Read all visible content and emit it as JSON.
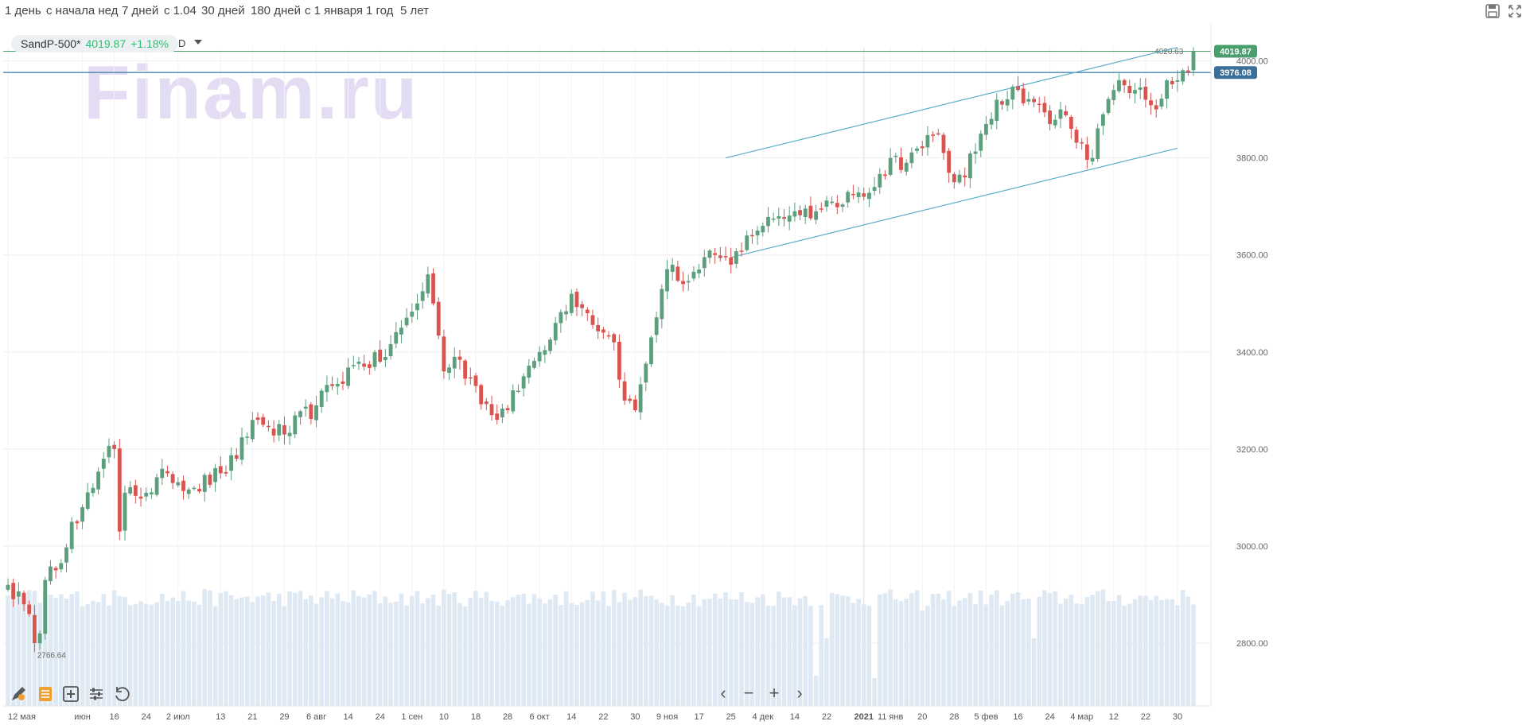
{
  "toolbar": {
    "periods": [
      {
        "label": "1 день"
      },
      {
        "label": "с начала нед"
      },
      {
        "label": "7 дней"
      },
      {
        "label": "с 1.04"
      },
      {
        "label": "30 дней"
      },
      {
        "label": "180 дней"
      },
      {
        "label": "с 1 января"
      },
      {
        "label": "1 год"
      },
      {
        "label": "5 лет"
      }
    ],
    "save_icon": "save-icon",
    "fullscreen_icon": "fullscreen-icon"
  },
  "ticker": {
    "name": "SandP-500*",
    "price": "4019.87",
    "change": "+1.18%",
    "interval": "D"
  },
  "watermark": "Finam.ru",
  "colors": {
    "up": "#5b9f7d",
    "down": "#d9534f",
    "volume": "#dfe9f3",
    "channel": "#5aaec8",
    "price_badge": "#4a9e6e",
    "level_badge": "#3c6e9a",
    "level_line": "#4a84b0"
  },
  "chart_data": {
    "type": "candlestick",
    "ylim": [
      2700,
      4060
    ],
    "yticks": [
      2800,
      3000,
      3200,
      3400,
      3600,
      3800,
      4000
    ],
    "ytick_labels": [
      "2800.00",
      "3000.00",
      "3200.00",
      "3400.00",
      "3600.00",
      "3800.00",
      "4000.00"
    ],
    "x_labels": [
      {
        "label": "12 мая",
        "i": 0
      },
      {
        "label": "июн",
        "i": 14
      },
      {
        "label": "16",
        "i": 20
      },
      {
        "label": "24",
        "i": 26
      },
      {
        "label": "2 июл",
        "i": 32
      },
      {
        "label": "13",
        "i": 40
      },
      {
        "label": "21",
        "i": 46
      },
      {
        "label": "29",
        "i": 52
      },
      {
        "label": "6 авг",
        "i": 58
      },
      {
        "label": "14",
        "i": 64
      },
      {
        "label": "24",
        "i": 70
      },
      {
        "label": "1 сен",
        "i": 76
      },
      {
        "label": "10",
        "i": 82
      },
      {
        "label": "18",
        "i": 88
      },
      {
        "label": "28",
        "i": 94
      },
      {
        "label": "6 окт",
        "i": 100
      },
      {
        "label": "14",
        "i": 106
      },
      {
        "label": "22",
        "i": 112
      },
      {
        "label": "30",
        "i": 118
      },
      {
        "label": "9 ноя",
        "i": 124
      },
      {
        "label": "17",
        "i": 130
      },
      {
        "label": "25",
        "i": 136
      },
      {
        "label": "4 дек",
        "i": 142
      },
      {
        "label": "14",
        "i": 148
      },
      {
        "label": "22",
        "i": 154
      },
      {
        "label": "2021",
        "i": 161,
        "bold": true
      },
      {
        "label": "11 янв",
        "i": 166
      },
      {
        "label": "20",
        "i": 172
      },
      {
        "label": "28",
        "i": 178
      },
      {
        "label": "5 фев",
        "i": 184
      },
      {
        "label": "16",
        "i": 190
      },
      {
        "label": "24",
        "i": 196
      },
      {
        "label": "4 мар",
        "i": 202
      },
      {
        "label": "12",
        "i": 208
      },
      {
        "label": "22",
        "i": 214
      },
      {
        "label": "30",
        "i": 220
      }
    ],
    "candle_count": 224,
    "anchors": [
      [
        0,
        2920
      ],
      [
        3,
        2880
      ],
      [
        4,
        2860
      ],
      [
        5,
        2800
      ],
      [
        6,
        2820
      ],
      [
        7,
        2930
      ],
      [
        9,
        2950
      ],
      [
        12,
        3050
      ],
      [
        14,
        3080
      ],
      [
        16,
        3120
      ],
      [
        18,
        3180
      ],
      [
        20,
        3200
      ],
      [
        21,
        3030
      ],
      [
        22,
        3110
      ],
      [
        26,
        3110
      ],
      [
        30,
        3150
      ],
      [
        35,
        3120
      ],
      [
        40,
        3150
      ],
      [
        43,
        3180
      ],
      [
        46,
        3260
      ],
      [
        48,
        3250
      ],
      [
        52,
        3230
      ],
      [
        58,
        3290
      ],
      [
        61,
        3330
      ],
      [
        66,
        3380
      ],
      [
        70,
        3380
      ],
      [
        74,
        3450
      ],
      [
        77,
        3500
      ],
      [
        79,
        3560
      ],
      [
        80,
        3500
      ],
      [
        82,
        3360
      ],
      [
        84,
        3390
      ],
      [
        88,
        3330
      ],
      [
        91,
        3270
      ],
      [
        94,
        3280
      ],
      [
        97,
        3350
      ],
      [
        100,
        3400
      ],
      [
        103,
        3460
      ],
      [
        106,
        3520
      ],
      [
        109,
        3480
      ],
      [
        112,
        3440
      ],
      [
        114,
        3420
      ],
      [
        116,
        3300
      ],
      [
        118,
        3280
      ],
      [
        121,
        3430
      ],
      [
        123,
        3530
      ],
      [
        125,
        3580
      ],
      [
        127,
        3540
      ],
      [
        130,
        3570
      ],
      [
        133,
        3600
      ],
      [
        136,
        3580
      ],
      [
        139,
        3640
      ],
      [
        142,
        3660
      ],
      [
        145,
        3680
      ],
      [
        148,
        3690
      ],
      [
        152,
        3690
      ],
      [
        155,
        3710
      ],
      [
        158,
        3730
      ],
      [
        161,
        3720
      ],
      [
        163,
        3740
      ],
      [
        166,
        3800
      ],
      [
        169,
        3790
      ],
      [
        172,
        3820
      ],
      [
        175,
        3850
      ],
      [
        178,
        3750
      ],
      [
        180,
        3760
      ],
      [
        183,
        3850
      ],
      [
        186,
        3920
      ],
      [
        190,
        3940
      ],
      [
        193,
        3915
      ],
      [
        196,
        3870
      ],
      [
        198,
        3900
      ],
      [
        200,
        3860
      ],
      [
        202,
        3830
      ],
      [
        204,
        3800
      ],
      [
        206,
        3890
      ],
      [
        208,
        3940
      ],
      [
        210,
        3950
      ],
      [
        212,
        3940
      ],
      [
        214,
        3920
      ],
      [
        216,
        3900
      ],
      [
        218,
        3960
      ],
      [
        220,
        3960
      ],
      [
        222,
        3976
      ],
      [
        223,
        4019.87
      ]
    ],
    "hi": 4020.63,
    "lo": 2766.64,
    "hi_label": "4020.63",
    "lo_label": "2766.64",
    "current_price": 4019.87,
    "current_price_label": "4019.87",
    "level": 3976.08,
    "level_label": "3976.08",
    "channel_upper": [
      [
        135,
        3800
      ],
      [
        220,
        4028
      ]
    ],
    "channel_lower": [
      [
        136,
        3595
      ],
      [
        220,
        3820
      ]
    ]
  },
  "tools": [
    {
      "icon": "pencil-icon"
    },
    {
      "icon": "indicators-icon"
    },
    {
      "icon": "add-chart-icon"
    },
    {
      "icon": "settings-sliders-icon"
    },
    {
      "icon": "reset-icon"
    }
  ],
  "nav": {
    "prev": "‹",
    "zoom_out": "−",
    "zoom_in": "+",
    "next": "›"
  }
}
